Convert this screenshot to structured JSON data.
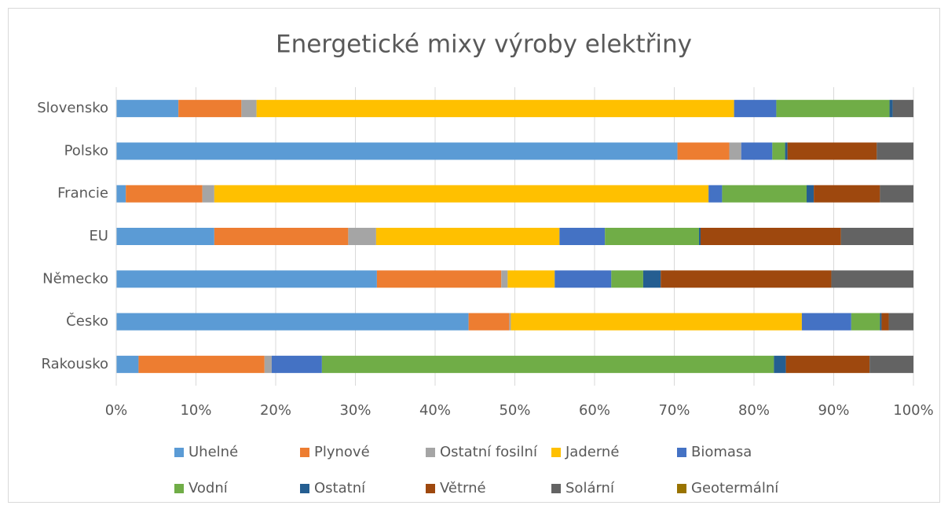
{
  "chart_data": {
    "type": "stacked-bar-horizontal",
    "title": "Energetické mixy výroby elektřiny",
    "categories": [
      "Rakousko",
      "Česko",
      "Německo",
      "EU",
      "Francie",
      "Polsko",
      "Slovensko"
    ],
    "series": [
      {
        "name": "Uhelné",
        "color": "#5b9bd5",
        "values": [
          2.8,
          44.2,
          32.7,
          12.3,
          1.2,
          70.4,
          7.8
        ]
      },
      {
        "name": "Plynové",
        "color": "#ed7d31",
        "values": [
          15.8,
          5.1,
          15.6,
          16.8,
          9.6,
          6.5,
          7.9
        ]
      },
      {
        "name": "Ostatní fosilní",
        "color": "#a5a5a5",
        "values": [
          0.9,
          0.2,
          0.8,
          3.5,
          1.5,
          1.5,
          1.9
        ]
      },
      {
        "name": "Jaderné",
        "color": "#ffc000",
        "values": [
          0,
          36.5,
          5.9,
          23.0,
          62.0,
          0,
          59.9
        ]
      },
      {
        "name": "Biomasa",
        "color": "#4472c4",
        "values": [
          6.3,
          6.2,
          7.1,
          5.7,
          1.7,
          3.9,
          5.3
        ]
      },
      {
        "name": "Vodní",
        "color": "#70ad47",
        "values": [
          56.7,
          3.6,
          4.0,
          11.8,
          10.6,
          1.6,
          14.2
        ]
      },
      {
        "name": "Ostatní",
        "color": "#255e91",
        "values": [
          1.5,
          0.2,
          2.2,
          0.2,
          0.9,
          0.3,
          0.4
        ]
      },
      {
        "name": "Větrné",
        "color": "#9e480e",
        "values": [
          10.5,
          0.9,
          21.4,
          17.6,
          8.3,
          11.2,
          0
        ]
      },
      {
        "name": "Solární",
        "color": "#636363",
        "values": [
          5.5,
          3.1,
          10.3,
          9.1,
          4.2,
          4.6,
          2.6
        ]
      },
      {
        "name": "Geotermální",
        "color": "#997300",
        "values": [
          0,
          0,
          0,
          0,
          0,
          0,
          0
        ]
      }
    ],
    "xlim": [
      0,
      100
    ],
    "xticks": [
      {
        "value": 0,
        "label": "0%"
      },
      {
        "value": 10,
        "label": "10%"
      },
      {
        "value": 20,
        "label": "20%"
      },
      {
        "value": 30,
        "label": "30%"
      },
      {
        "value": 40,
        "label": "40%"
      },
      {
        "value": 50,
        "label": "50%"
      },
      {
        "value": 60,
        "label": "60%"
      },
      {
        "value": 70,
        "label": "70%"
      },
      {
        "value": 80,
        "label": "80%"
      },
      {
        "value": 90,
        "label": "90%"
      },
      {
        "value": 100,
        "label": "100%"
      }
    ],
    "grid": true,
    "legend": "bottom"
  }
}
